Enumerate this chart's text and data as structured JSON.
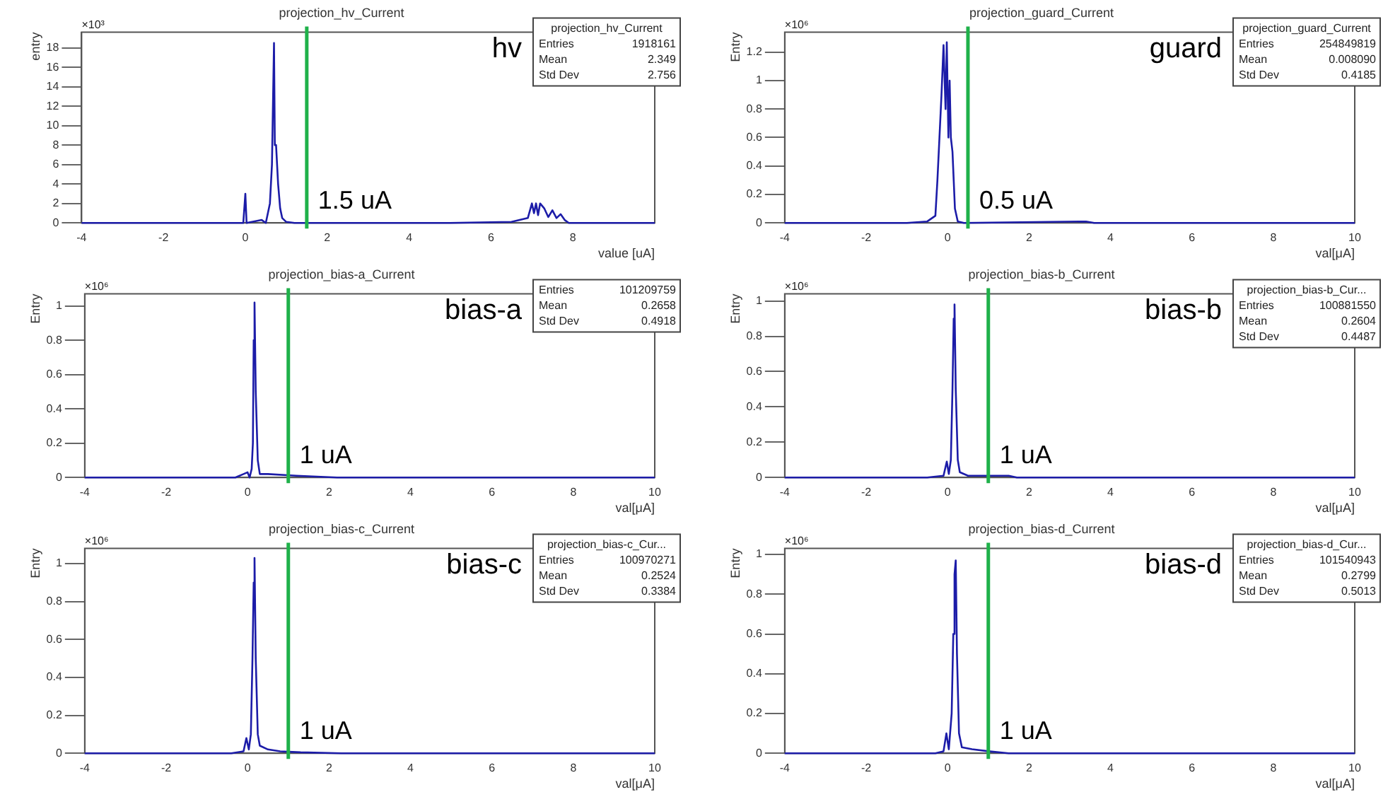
{
  "chart_data": [
    {
      "type": "line",
      "title": "projection_hv_Current",
      "xlabel": "value [uA]",
      "ylabel": "entry",
      "xlim": [
        -4,
        10
      ],
      "ylim": [
        0,
        19.6
      ],
      "xticks": [
        -4,
        -2,
        0,
        2,
        4,
        6,
        8
      ],
      "yticks": [
        0,
        2,
        4,
        6,
        8,
        10,
        12,
        14,
        16,
        18
      ],
      "grid": false,
      "legend": false,
      "marker": "none",
      "series": [
        {
          "color": "#1c1ca8",
          "x": [
            -4,
            -0.05,
            0,
            0.03,
            0.4,
            0.5,
            0.6,
            0.65,
            0.7,
            0.72,
            0.75,
            0.8,
            0.85,
            0.9,
            1.0,
            1.2,
            5,
            6.5,
            6.9,
            7.0,
            7.05,
            7.1,
            7.15,
            7.2,
            7.3,
            7.4,
            7.5,
            7.6,
            7.7,
            7.8,
            7.9,
            10
          ],
          "values": [
            0,
            0,
            3,
            0,
            0.3,
            0,
            2,
            6,
            18.5,
            8,
            8,
            4,
            1.5,
            0.5,
            0.1,
            0,
            0,
            0.1,
            0.5,
            2,
            1,
            2,
            0.8,
            2,
            1.5,
            0.6,
            1.3,
            0.5,
            0.9,
            0.3,
            0,
            0
          ]
        }
      ],
      "ref_lines": [
        {
          "axis": "x",
          "value": 1.5,
          "color": "#1fb14a",
          "label": "1.5 uA"
        }
      ],
      "annotations": [
        "hv",
        "×10³",
        "projection_hv_Current",
        "Entries 1918161",
        "Mean 2.349",
        "Std Dev 2.756"
      ]
    },
    {
      "type": "line",
      "title": "projection_guard_Current",
      "xlabel": "val[μA]",
      "ylabel": "Entry",
      "xlim": [
        -4,
        10
      ],
      "ylim": [
        0,
        1.34
      ],
      "xticks": [
        -4,
        -2,
        0,
        2,
        4,
        6,
        8,
        10
      ],
      "yticks": [
        0,
        0.2,
        0.4,
        0.6,
        0.8,
        1,
        1.2
      ],
      "grid": false,
      "legend": false,
      "marker": "none",
      "series": [
        {
          "color": "#1c1ca8",
          "x": [
            -4,
            -1,
            -0.5,
            -0.3,
            -0.25,
            -0.2,
            -0.15,
            -0.1,
            -0.05,
            -0.02,
            0.02,
            0.05,
            0.08,
            0.12,
            0.18,
            0.25,
            0.4,
            3.4,
            3.6,
            10
          ],
          "values": [
            0,
            0,
            0.01,
            0.05,
            0.3,
            0.6,
            0.9,
            1.25,
            0.8,
            1.27,
            0.6,
            1.0,
            0.6,
            0.5,
            0.1,
            0.01,
            0,
            0.01,
            0,
            0
          ]
        }
      ],
      "ref_lines": [
        {
          "axis": "x",
          "value": 0.5,
          "color": "#1fb14a",
          "label": "0.5 uA"
        }
      ],
      "annotations": [
        "guard",
        "×10⁶",
        "projection_guard_Current",
        "Entries 254849819",
        "Mean 0.008090",
        "Std Dev 0.4185"
      ]
    },
    {
      "type": "line",
      "title": "projection_bias-a_Current",
      "xlabel": "val[μA]",
      "ylabel": "Entry",
      "xlim": [
        -4,
        10
      ],
      "ylim": [
        0,
        1.07
      ],
      "xticks": [
        -4,
        -2,
        0,
        2,
        4,
        6,
        8,
        10
      ],
      "yticks": [
        0,
        0.2,
        0.4,
        0.6,
        0.8,
        1
      ],
      "grid": false,
      "legend": false,
      "marker": "none",
      "series": [
        {
          "color": "#1c1ca8",
          "x": [
            -4,
            -0.3,
            -0.1,
            0,
            0.05,
            0.1,
            0.13,
            0.15,
            0.17,
            0.2,
            0.25,
            0.3,
            0.5,
            1.2,
            2.2,
            10
          ],
          "values": [
            0,
            0,
            0.02,
            0.03,
            0,
            0.05,
            0.2,
            0.8,
            1.02,
            0.5,
            0.1,
            0.02,
            0.02,
            0.01,
            0,
            0
          ]
        }
      ],
      "ref_lines": [
        {
          "axis": "x",
          "value": 1,
          "color": "#1fb14a",
          "label": "1 uA"
        }
      ],
      "annotations": [
        "bias-a",
        "×10⁶",
        "Entries 101209759",
        "Mean 0.2658",
        "Std Dev 0.4918"
      ]
    },
    {
      "type": "line",
      "title": "projection_bias-b_Current",
      "xlabel": "val[μA]",
      "ylabel": "Entry",
      "xlim": [
        -4,
        10
      ],
      "ylim": [
        0,
        1.04
      ],
      "xticks": [
        -4,
        -2,
        0,
        2,
        4,
        6,
        8,
        10
      ],
      "yticks": [
        0,
        0.2,
        0.4,
        0.6,
        0.8,
        1
      ],
      "grid": false,
      "legend": false,
      "marker": "none",
      "series": [
        {
          "color": "#1c1ca8",
          "x": [
            -4,
            -0.5,
            -0.1,
            -0.02,
            0.03,
            0.08,
            0.12,
            0.15,
            0.17,
            0.2,
            0.25,
            0.3,
            0.5,
            1.0,
            1.5,
            1.7,
            10
          ],
          "values": [
            0,
            0,
            0.01,
            0.09,
            0.02,
            0.1,
            0.5,
            0.9,
            0.98,
            0.5,
            0.1,
            0.03,
            0.01,
            0.01,
            0.01,
            0,
            0
          ]
        }
      ],
      "ref_lines": [
        {
          "axis": "x",
          "value": 1,
          "color": "#1fb14a",
          "label": "1 uA"
        }
      ],
      "annotations": [
        "bias-b",
        "×10⁶",
        "projection_bias-b_Cur...",
        "Entries 100881550",
        "Mean 0.2604",
        "Std Dev 0.4487"
      ]
    },
    {
      "type": "line",
      "title": "projection_bias-c_Current",
      "xlabel": "val[μA]",
      "ylabel": "Entry",
      "xlim": [
        -4,
        10
      ],
      "ylim": [
        0,
        1.08
      ],
      "xticks": [
        -4,
        -2,
        0,
        2,
        4,
        6,
        8,
        10
      ],
      "yticks": [
        0,
        0.2,
        0.4,
        0.6,
        0.8,
        1
      ],
      "grid": false,
      "legend": false,
      "marker": "none",
      "series": [
        {
          "color": "#1c1ca8",
          "x": [
            -4,
            -0.4,
            -0.1,
            -0.03,
            0.03,
            0.08,
            0.12,
            0.15,
            0.17,
            0.2,
            0.25,
            0.3,
            0.5,
            0.8,
            1.3,
            2.3,
            10
          ],
          "values": [
            0,
            0,
            0.01,
            0.08,
            0.02,
            0.1,
            0.5,
            0.9,
            1.03,
            0.5,
            0.1,
            0.04,
            0.02,
            0.01,
            0.005,
            0,
            0
          ]
        }
      ],
      "ref_lines": [
        {
          "axis": "x",
          "value": 1,
          "color": "#1fb14a",
          "label": "1 uA"
        }
      ],
      "annotations": [
        "bias-c",
        "×10⁶",
        "projection_bias-c_Cur...",
        "Entries 100970271",
        "Mean 0.2524",
        "Std Dev 0.3384"
      ]
    },
    {
      "type": "line",
      "title": "projection_bias-d_Current",
      "xlabel": "val[μA]",
      "ylabel": "Entry",
      "xlim": [
        -4,
        10
      ],
      "ylim": [
        0,
        1.03
      ],
      "xticks": [
        -4,
        -2,
        0,
        2,
        4,
        6,
        8,
        10
      ],
      "yticks": [
        0,
        0.2,
        0.4,
        0.6,
        0.8,
        1
      ],
      "grid": false,
      "legend": false,
      "marker": "none",
      "series": [
        {
          "color": "#1c1ca8",
          "x": [
            -4,
            -0.3,
            -0.1,
            -0.03,
            0.03,
            0.1,
            0.14,
            0.17,
            0.2,
            0.23,
            0.28,
            0.35,
            0.6,
            1.0,
            1.5,
            10
          ],
          "values": [
            0,
            0,
            0.01,
            0.1,
            0.02,
            0.2,
            0.6,
            0.9,
            0.97,
            0.5,
            0.1,
            0.03,
            0.02,
            0.01,
            0,
            0
          ]
        }
      ],
      "ref_lines": [
        {
          "axis": "x",
          "value": 1,
          "color": "#1fb14a",
          "label": "1 uA"
        }
      ],
      "annotations": [
        "bias-d",
        "×10⁶",
        "projection_bias-d_Cur...",
        "Entries 101540943",
        "Mean 0.2799",
        "Std Dev 0.5013"
      ]
    }
  ]
}
